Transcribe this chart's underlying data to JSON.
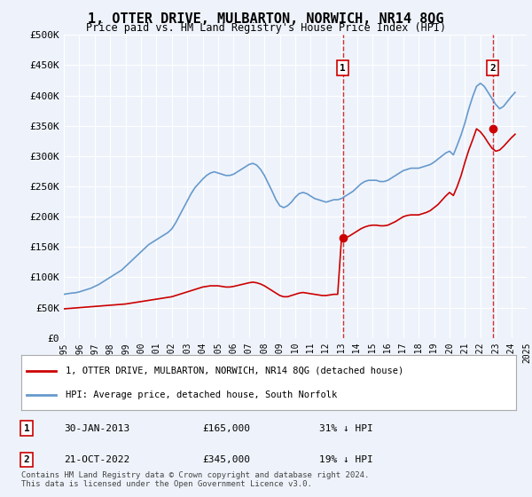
{
  "title": "1, OTTER DRIVE, MULBARTON, NORWICH, NR14 8QG",
  "subtitle": "Price paid vs. HM Land Registry's House Price Index (HPI)",
  "background_color": "#eef3fb",
  "plot_bg_color": "#eef3fb",
  "hpi_color": "#6699cc",
  "price_color": "#cc0000",
  "ylim": [
    0,
    500000
  ],
  "yticks": [
    0,
    50000,
    100000,
    150000,
    200000,
    250000,
    300000,
    350000,
    400000,
    450000,
    500000
  ],
  "ytick_labels": [
    "£0",
    "£50K",
    "£100K",
    "£150K",
    "£200K",
    "£250K",
    "£300K",
    "£350K",
    "£400K",
    "£450K",
    "£500K"
  ],
  "xmin_year": 1995,
  "xmax_year": 2025,
  "xticks": [
    1995,
    1996,
    1997,
    1998,
    1999,
    2000,
    2001,
    2002,
    2003,
    2004,
    2005,
    2006,
    2007,
    2008,
    2009,
    2010,
    2011,
    2012,
    2013,
    2014,
    2015,
    2016,
    2017,
    2018,
    2019,
    2020,
    2021,
    2022,
    2023,
    2024,
    2025
  ],
  "purchase1_x": 2013.08,
  "purchase1_y": 165000,
  "purchase1_label": "1",
  "purchase2_x": 2022.8,
  "purchase2_y": 345000,
  "purchase2_label": "2",
  "legend_line1": "1, OTTER DRIVE, MULBARTON, NORWICH, NR14 8QG (detached house)",
  "legend_line2": "HPI: Average price, detached house, South Norfolk",
  "table_row1": [
    "1",
    "30-JAN-2013",
    "£165,000",
    "31% ↓ HPI"
  ],
  "table_row2": [
    "2",
    "21-OCT-2022",
    "£345,000",
    "19% ↓ HPI"
  ],
  "footnote": "Contains HM Land Registry data © Crown copyright and database right 2024.\nThis data is licensed under the Open Government Licence v3.0.",
  "hpi_data_x": [
    1995.0,
    1995.25,
    1995.5,
    1995.75,
    1996.0,
    1996.25,
    1996.5,
    1996.75,
    1997.0,
    1997.25,
    1997.5,
    1997.75,
    1998.0,
    1998.25,
    1998.5,
    1998.75,
    1999.0,
    1999.25,
    1999.5,
    1999.75,
    2000.0,
    2000.25,
    2000.5,
    2000.75,
    2001.0,
    2001.25,
    2001.5,
    2001.75,
    2002.0,
    2002.25,
    2002.5,
    2002.75,
    2003.0,
    2003.25,
    2003.5,
    2003.75,
    2004.0,
    2004.25,
    2004.5,
    2004.75,
    2005.0,
    2005.25,
    2005.5,
    2005.75,
    2006.0,
    2006.25,
    2006.5,
    2006.75,
    2007.0,
    2007.25,
    2007.5,
    2007.75,
    2008.0,
    2008.25,
    2008.5,
    2008.75,
    2009.0,
    2009.25,
    2009.5,
    2009.75,
    2010.0,
    2010.25,
    2010.5,
    2010.75,
    2011.0,
    2011.25,
    2011.5,
    2011.75,
    2012.0,
    2012.25,
    2012.5,
    2012.75,
    2013.0,
    2013.25,
    2013.5,
    2013.75,
    2014.0,
    2014.25,
    2014.5,
    2014.75,
    2015.0,
    2015.25,
    2015.5,
    2015.75,
    2016.0,
    2016.25,
    2016.5,
    2016.75,
    2017.0,
    2017.25,
    2017.5,
    2017.75,
    2018.0,
    2018.25,
    2018.5,
    2018.75,
    2019.0,
    2019.25,
    2019.5,
    2019.75,
    2020.0,
    2020.25,
    2020.5,
    2020.75,
    2021.0,
    2021.25,
    2021.5,
    2021.75,
    2022.0,
    2022.25,
    2022.5,
    2022.75,
    2023.0,
    2023.25,
    2023.5,
    2023.75,
    2024.0,
    2024.25
  ],
  "hpi_data_y": [
    72000,
    73000,
    74000,
    74500,
    76000,
    78000,
    80000,
    82000,
    85000,
    88000,
    92000,
    96000,
    100000,
    104000,
    108000,
    112000,
    118000,
    124000,
    130000,
    136000,
    142000,
    148000,
    154000,
    158000,
    162000,
    166000,
    170000,
    174000,
    180000,
    190000,
    202000,
    214000,
    226000,
    238000,
    248000,
    255000,
    262000,
    268000,
    272000,
    274000,
    272000,
    270000,
    268000,
    268000,
    270000,
    274000,
    278000,
    282000,
    286000,
    288000,
    285000,
    278000,
    268000,
    255000,
    242000,
    228000,
    218000,
    215000,
    218000,
    224000,
    232000,
    238000,
    240000,
    238000,
    234000,
    230000,
    228000,
    226000,
    224000,
    226000,
    228000,
    228000,
    230000,
    234000,
    238000,
    242000,
    248000,
    254000,
    258000,
    260000,
    260000,
    260000,
    258000,
    258000,
    260000,
    264000,
    268000,
    272000,
    276000,
    278000,
    280000,
    280000,
    280000,
    282000,
    284000,
    286000,
    290000,
    295000,
    300000,
    305000,
    308000,
    302000,
    318000,
    335000,
    355000,
    378000,
    398000,
    415000,
    420000,
    415000,
    405000,
    395000,
    385000,
    378000,
    382000,
    390000,
    398000,
    405000
  ],
  "price_data_x": [
    1995.0,
    1995.25,
    1995.5,
    1995.75,
    1996.0,
    1996.25,
    1996.5,
    1996.75,
    1997.0,
    1997.25,
    1997.5,
    1997.75,
    1998.0,
    1998.25,
    1998.5,
    1998.75,
    1999.0,
    1999.25,
    1999.5,
    1999.75,
    2000.0,
    2000.25,
    2000.5,
    2000.75,
    2001.0,
    2001.25,
    2001.5,
    2001.75,
    2002.0,
    2002.25,
    2002.5,
    2002.75,
    2003.0,
    2003.25,
    2003.5,
    2003.75,
    2004.0,
    2004.25,
    2004.5,
    2004.75,
    2005.0,
    2005.25,
    2005.5,
    2005.75,
    2006.0,
    2006.25,
    2006.5,
    2006.75,
    2007.0,
    2007.25,
    2007.5,
    2007.75,
    2008.0,
    2008.25,
    2008.5,
    2008.75,
    2009.0,
    2009.25,
    2009.5,
    2009.75,
    2010.0,
    2010.25,
    2010.5,
    2010.75,
    2011.0,
    2011.25,
    2011.5,
    2011.75,
    2012.0,
    2012.25,
    2012.5,
    2012.75,
    2013.0,
    2013.25,
    2013.5,
    2013.75,
    2014.0,
    2014.25,
    2014.5,
    2014.75,
    2015.0,
    2015.25,
    2015.5,
    2015.75,
    2016.0,
    2016.25,
    2016.5,
    2016.75,
    2017.0,
    2017.25,
    2017.5,
    2017.75,
    2018.0,
    2018.25,
    2018.5,
    2018.75,
    2019.0,
    2019.25,
    2019.5,
    2019.75,
    2020.0,
    2020.25,
    2020.5,
    2020.75,
    2021.0,
    2021.25,
    2021.5,
    2021.75,
    2022.0,
    2022.25,
    2022.5,
    2022.75,
    2023.0,
    2023.25,
    2023.5,
    2023.75,
    2024.0,
    2024.25
  ],
  "price_data_y": [
    48000,
    48500,
    49000,
    49500,
    50000,
    50500,
    51000,
    51500,
    52000,
    52500,
    53000,
    53500,
    54000,
    54500,
    55000,
    55500,
    56000,
    57000,
    58000,
    59000,
    60000,
    61000,
    62000,
    63000,
    64000,
    65000,
    66000,
    67000,
    68000,
    70000,
    72000,
    74000,
    76000,
    78000,
    80000,
    82000,
    84000,
    85000,
    86000,
    86000,
    86000,
    85000,
    84000,
    84000,
    85000,
    86500,
    88000,
    89500,
    91000,
    92000,
    91000,
    89000,
    86000,
    82000,
    78000,
    74000,
    70000,
    68000,
    68000,
    70000,
    72000,
    74000,
    75000,
    74000,
    73000,
    72000,
    71000,
    70000,
    70000,
    71000,
    72000,
    72000,
    165000,
    165000,
    168000,
    172000,
    176000,
    180000,
    183000,
    185000,
    186000,
    186000,
    185000,
    185000,
    186000,
    189000,
    192000,
    196000,
    200000,
    202000,
    203000,
    203000,
    203000,
    205000,
    207000,
    210000,
    215000,
    220000,
    227000,
    234000,
    240000,
    235000,
    250000,
    268000,
    290000,
    310000,
    327000,
    345000,
    340000,
    332000,
    322000,
    313000,
    308000,
    310000,
    316000,
    323000,
    330000,
    336000
  ]
}
